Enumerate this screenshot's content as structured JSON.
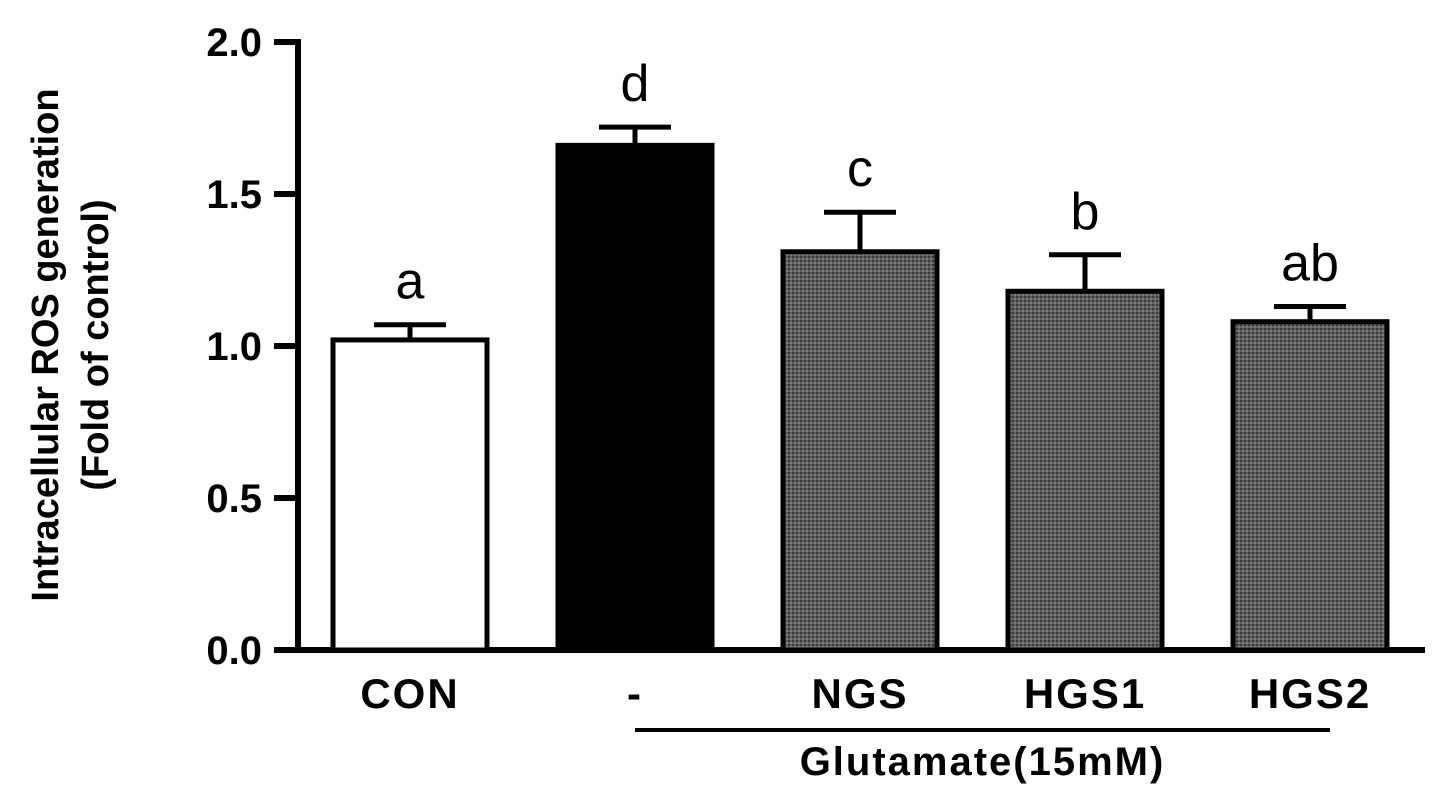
{
  "chart_data": {
    "type": "bar",
    "title": "",
    "ylabel_lines": [
      "Intracellular ROS generation",
      "(Fold of control)"
    ],
    "xlabel": "",
    "ylim": [
      0,
      2.0
    ],
    "yticks": [
      0.0,
      0.5,
      1.0,
      1.5,
      2.0
    ],
    "ytick_labels": [
      "0.0",
      "0.5",
      "1.0",
      "1.5",
      "2.0"
    ],
    "categories": [
      "CON",
      "-",
      "NGS",
      "HGS1",
      "HGS2"
    ],
    "values": [
      1.02,
      1.66,
      1.31,
      1.18,
      1.08
    ],
    "errors": [
      0.05,
      0.06,
      0.13,
      0.12,
      0.05
    ],
    "significance": [
      "a",
      "d",
      "c",
      "b",
      "ab"
    ],
    "bar_fills": [
      "#ffffff",
      "#000000",
      "#5f5f5f",
      "#5f5f5f",
      "#5f5f5f"
    ],
    "group_label": "Glutamate(15mM)",
    "group_span": [
      "-",
      "HGS2"
    ],
    "grid": false,
    "legend": "none"
  }
}
